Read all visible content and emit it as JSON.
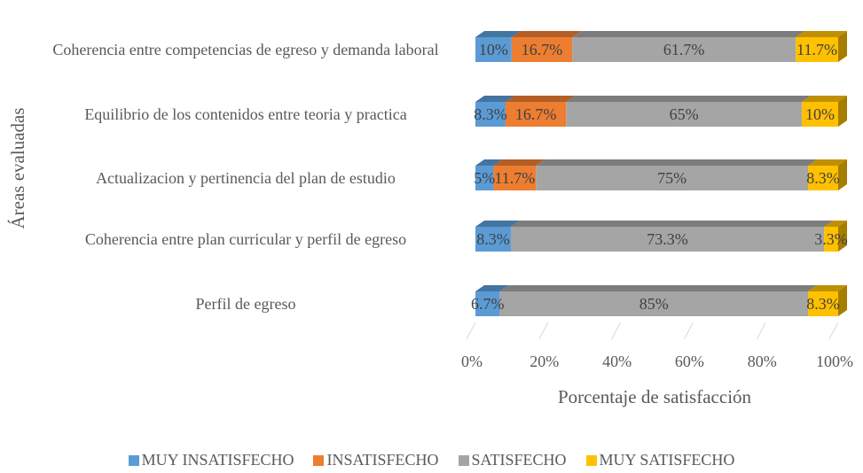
{
  "chart_data": {
    "type": "bar",
    "orientation": "horizontal",
    "stacked": "percent",
    "3d": true,
    "y_label": "Áreas evaluadas",
    "x_label": "Porcentaje de satisfacción",
    "categories": [
      "Coherencia entre competencias de egreso y demanda laboral",
      "Equilibrio de los contenidos entre teoria y practica",
      "Actualizacion y pertinencia del plan de estudio",
      "Coherencia entre plan curricular y perfil de egreso",
      "Perfil de egreso"
    ],
    "series": [
      {
        "name": "MUY INSATISFECHO",
        "color": "#5b9bd5",
        "values": [
          10,
          8.3,
          5,
          8.3,
          6.7
        ],
        "value_labels": [
          "10%",
          "8.3%",
          "5%",
          "8.3%",
          "6.7%"
        ]
      },
      {
        "name": "INSATISFECHO",
        "color": "#ed7d31",
        "values": [
          16.7,
          16.7,
          11.7,
          null,
          null
        ],
        "value_labels": [
          "16.7%",
          "16.7%",
          "11.7%",
          null,
          null
        ]
      },
      {
        "name": "SATISFECHO",
        "color": "#a5a5a5",
        "values": [
          61.7,
          65,
          75,
          73.3,
          85
        ],
        "value_labels": [
          "61.7%",
          "65%",
          "75%",
          "73.3%",
          "85%"
        ]
      },
      {
        "name": "MUY SATISFECHO",
        "color": "#ffc000",
        "values": [
          11.7,
          10,
          8.3,
          3.3,
          8.3
        ],
        "value_labels": [
          "11.7%",
          "10%",
          "8.3%",
          "3.3%",
          "8.3%"
        ]
      }
    ],
    "xlim": [
      0,
      100
    ],
    "xticks": [
      {
        "value": 0,
        "label": "0%"
      },
      {
        "value": 20,
        "label": "20%"
      },
      {
        "value": 40,
        "label": "40%"
      },
      {
        "value": 60,
        "label": "60%"
      },
      {
        "value": 80,
        "label": "80%"
      },
      {
        "value": 100,
        "label": "100%"
      }
    ],
    "grid": true,
    "legend": "bottom"
  }
}
